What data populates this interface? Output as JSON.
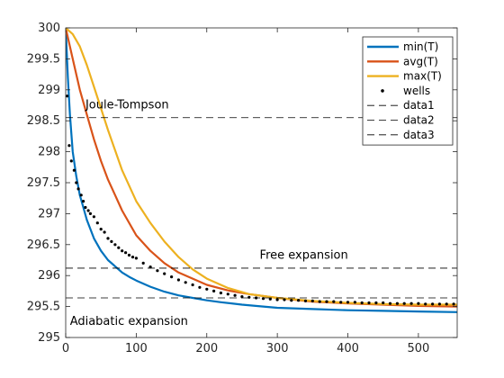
{
  "chart_data": {
    "type": "line",
    "xlim": [
      0,
      555
    ],
    "ylim": [
      295,
      300
    ],
    "x_ticks": [
      0,
      100,
      200,
      300,
      400,
      500
    ],
    "y_ticks": [
      295,
      295.5,
      296,
      296.5,
      297,
      297.5,
      298,
      298.5,
      299,
      299.5,
      300
    ],
    "grid": false,
    "legend_position": "top-right",
    "series": [
      {
        "name": "min(T)",
        "style": "line",
        "color": "#0072bd",
        "x": [
          0,
          3,
          6,
          10,
          15,
          20,
          25,
          30,
          40,
          50,
          60,
          70,
          80,
          90,
          100,
          120,
          140,
          160,
          180,
          200,
          220,
          250,
          280,
          300,
          350,
          400,
          450,
          500,
          555
        ],
        "y": [
          300,
          299.2,
          298.6,
          298.0,
          297.6,
          297.3,
          297.1,
          296.9,
          296.6,
          296.4,
          296.25,
          296.15,
          296.05,
          295.98,
          295.92,
          295.82,
          295.74,
          295.68,
          295.64,
          295.6,
          295.57,
          295.53,
          295.5,
          295.48,
          295.46,
          295.44,
          295.43,
          295.42,
          295.41
        ]
      },
      {
        "name": "avg(T)",
        "style": "line",
        "color": "#d95319",
        "x": [
          0,
          10,
          20,
          30,
          40,
          50,
          60,
          70,
          80,
          100,
          120,
          140,
          160,
          180,
          200,
          230,
          260,
          300,
          350,
          400,
          450,
          500,
          555
        ],
        "y": [
          300,
          299.5,
          299.0,
          298.6,
          298.2,
          297.85,
          297.55,
          297.3,
          297.05,
          296.65,
          296.4,
          296.2,
          296.05,
          295.95,
          295.85,
          295.76,
          295.7,
          295.64,
          295.58,
          295.55,
          295.53,
          295.51,
          295.5
        ]
      },
      {
        "name": "max(T)",
        "style": "line",
        "color": "#edb120",
        "x": [
          0,
          10,
          20,
          30,
          40,
          50,
          60,
          80,
          100,
          120,
          140,
          160,
          180,
          200,
          230,
          260,
          300,
          350,
          400,
          450,
          500,
          555
        ],
        "y": [
          300,
          299.9,
          299.7,
          299.4,
          299.05,
          298.7,
          298.35,
          297.7,
          297.2,
          296.85,
          296.55,
          296.3,
          296.1,
          295.95,
          295.8,
          295.7,
          295.64,
          295.59,
          295.56,
          295.54,
          295.53,
          295.53
        ]
      },
      {
        "name": "wells",
        "style": "dots",
        "color": "#000000",
        "x": [
          2,
          5,
          8,
          12,
          15,
          18,
          22,
          25,
          28,
          32,
          35,
          40,
          45,
          50,
          55,
          60,
          65,
          70,
          75,
          80,
          85,
          90,
          95,
          100,
          110,
          120,
          130,
          140,
          150,
          160,
          170,
          180,
          190,
          200,
          210,
          220,
          230,
          240,
          250,
          260,
          270,
          280,
          290,
          300,
          310,
          320,
          330,
          340,
          350,
          360,
          370,
          380,
          390,
          400,
          410,
          420,
          430,
          440,
          450,
          460,
          470,
          480,
          490,
          500,
          510,
          520,
          530,
          540,
          550
        ],
        "y": [
          298.9,
          298.1,
          297.85,
          297.7,
          297.5,
          297.4,
          297.3,
          297.2,
          297.1,
          297.05,
          297.0,
          296.95,
          296.85,
          296.75,
          296.7,
          296.6,
          296.55,
          296.5,
          296.45,
          296.4,
          296.37,
          296.33,
          296.3,
          296.28,
          296.2,
          296.14,
          296.08,
          296.03,
          295.98,
          295.93,
          295.89,
          295.85,
          295.81,
          295.78,
          295.75,
          295.72,
          295.7,
          295.68,
          295.66,
          295.65,
          295.64,
          295.63,
          295.62,
          295.61,
          295.61,
          295.6,
          295.6,
          295.59,
          295.59,
          295.58,
          295.58,
          295.58,
          295.57,
          295.57,
          295.57,
          295.56,
          295.56,
          295.56,
          295.56,
          295.55,
          295.55,
          295.55,
          295.55,
          295.55,
          295.54,
          295.54,
          295.54,
          295.54,
          295.54
        ]
      },
      {
        "name": "data1",
        "style": "dashed",
        "color": "#000000",
        "y_const": 298.55
      },
      {
        "name": "data2",
        "style": "dashed",
        "color": "#000000",
        "y_const": 296.12
      },
      {
        "name": "data3",
        "style": "dashed",
        "color": "#000000",
        "y_const": 295.64
      }
    ],
    "annotations": [
      {
        "text": "Joule-Tompson",
        "x": 28,
        "y": 298.7
      },
      {
        "text": "Free expansion",
        "x": 275,
        "y": 296.27
      },
      {
        "text": "Adiabatic expansion",
        "x": 6,
        "y": 295.2
      }
    ]
  }
}
